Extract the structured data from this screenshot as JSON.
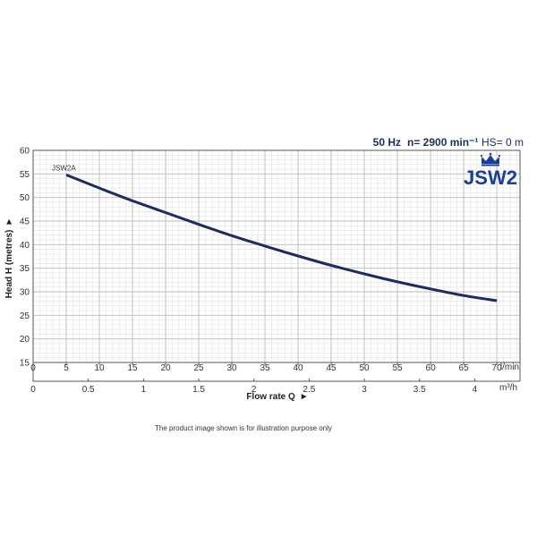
{
  "header": {
    "frequency": "50 Hz",
    "speed": "n= 2900 min⁻¹",
    "suction_head": "HS= 0 m",
    "brand": "JSW2"
  },
  "caption": "The product image shown is for illustration purpose only",
  "colors": {
    "curve": "#1c2d5a",
    "brand": "#1c3f8f",
    "grid_major": "#bbbbbb",
    "grid_minor": "#e2e2e2",
    "frame": "#555555"
  },
  "chart_data": {
    "type": "line",
    "title": "",
    "ylabel": "Head H (metres)",
    "xlabel": "Flow rate Q",
    "x_unit": "l/min",
    "x2_unit": "m³/h",
    "xlim": [
      0,
      70
    ],
    "ylim": [
      15,
      60
    ],
    "x_ticks": [
      "0",
      "5",
      "10",
      "15",
      "20",
      "25",
      "30",
      "35",
      "40",
      "45",
      "50",
      "55",
      "60",
      "65",
      "70"
    ],
    "x2_ticks": [
      "0",
      "0.5",
      "1",
      "1.5",
      "2",
      "2.5",
      "3",
      "3.5",
      "4"
    ],
    "y_ticks": [
      "15",
      "20",
      "25",
      "30",
      "35",
      "40",
      "45",
      "50",
      "55",
      "60"
    ],
    "grid": true,
    "series": [
      {
        "name": "JSW2A",
        "x": [
          5,
          10,
          15,
          20,
          25,
          30,
          35,
          40,
          45,
          50,
          55,
          60,
          65,
          70
        ],
        "y": [
          54.8,
          52.0,
          49.3,
          46.8,
          44.3,
          41.9,
          39.7,
          37.6,
          35.6,
          33.8,
          32.1,
          30.6,
          29.2,
          28.1
        ]
      }
    ]
  }
}
